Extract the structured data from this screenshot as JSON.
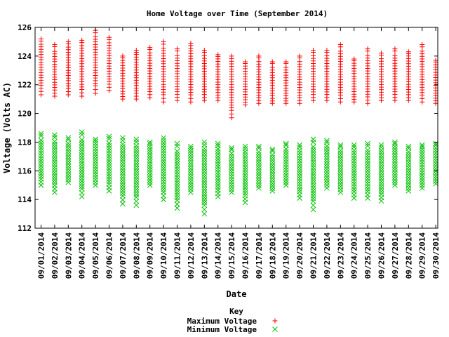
{
  "chart_data": {
    "type": "scatter",
    "title": "Home Voltage over Time (September 2014)",
    "xlabel": "Date",
    "ylabel": "Voltage (Volts AC)",
    "ylim": [
      112,
      126
    ],
    "yticks": [
      112,
      114,
      116,
      118,
      120,
      122,
      124,
      126
    ],
    "grid": false,
    "legend": {
      "title": "Key",
      "placement": "bottom-center"
    },
    "categories": [
      "09/01/2014",
      "09/02/2014",
      "09/03/2014",
      "09/04/2014",
      "09/05/2014",
      "09/06/2014",
      "09/07/2014",
      "09/08/2014",
      "09/09/2014",
      "09/10/2014",
      "09/11/2014",
      "09/12/2014",
      "09/13/2014",
      "09/14/2014",
      "09/15/2014",
      "09/16/2014",
      "09/17/2014",
      "09/18/2014",
      "09/19/2014",
      "09/20/2014",
      "09/21/2014",
      "09/22/2014",
      "09/23/2014",
      "09/24/2014",
      "09/25/2014",
      "09/26/2014",
      "09/27/2014",
      "09/28/2014",
      "09/29/2014",
      "09/30/2014"
    ],
    "series": [
      {
        "name": "Maximum Voltage",
        "marker": "+",
        "color": "#ff0000",
        "ranges": [
          [
            121.3,
            125.2
          ],
          [
            121.2,
            124.8
          ],
          [
            121.3,
            125.0
          ],
          [
            121.2,
            125.1
          ],
          [
            121.4,
            125.8
          ],
          [
            121.6,
            125.3
          ],
          [
            121.0,
            124.0
          ],
          [
            121.0,
            124.4
          ],
          [
            121.1,
            124.6
          ],
          [
            120.8,
            125.0
          ],
          [
            120.9,
            124.5
          ],
          [
            120.8,
            124.9
          ],
          [
            120.9,
            124.4
          ],
          [
            120.9,
            124.1
          ],
          [
            119.7,
            124.0
          ],
          [
            120.6,
            123.6
          ],
          [
            120.7,
            124.0
          ],
          [
            120.7,
            123.6
          ],
          [
            120.7,
            123.6
          ],
          [
            120.7,
            124.0
          ],
          [
            120.9,
            124.4
          ],
          [
            120.9,
            124.4
          ],
          [
            120.8,
            124.8
          ],
          [
            120.8,
            123.8
          ],
          [
            120.7,
            124.5
          ],
          [
            120.9,
            124.2
          ],
          [
            120.9,
            124.5
          ],
          [
            120.9,
            124.3
          ],
          [
            120.8,
            124.8
          ],
          [
            120.7,
            123.7
          ]
        ]
      },
      {
        "name": "Minimum Voltage",
        "marker": "x",
        "color": "#00c000",
        "ranges": [
          [
            115.0,
            118.6
          ],
          [
            114.5,
            118.5
          ],
          [
            115.2,
            118.3
          ],
          [
            114.2,
            118.7
          ],
          [
            115.0,
            118.2
          ],
          [
            114.6,
            118.4
          ],
          [
            113.7,
            118.3
          ],
          [
            113.6,
            118.2
          ],
          [
            115.0,
            118.0
          ],
          [
            114.0,
            118.3
          ],
          [
            113.4,
            117.9
          ],
          [
            114.5,
            117.7
          ],
          [
            113.0,
            118.0
          ],
          [
            114.2,
            117.9
          ],
          [
            114.5,
            117.6
          ],
          [
            113.8,
            117.7
          ],
          [
            114.8,
            117.7
          ],
          [
            114.6,
            117.5
          ],
          [
            115.0,
            117.9
          ],
          [
            114.1,
            117.8
          ],
          [
            113.3,
            118.2
          ],
          [
            114.8,
            118.1
          ],
          [
            114.5,
            117.8
          ],
          [
            114.1,
            117.8
          ],
          [
            114.1,
            117.9
          ],
          [
            113.9,
            117.8
          ],
          [
            115.0,
            118.0
          ],
          [
            114.6,
            117.7
          ],
          [
            114.8,
            117.8
          ],
          [
            115.1,
            117.9
          ]
        ]
      }
    ]
  }
}
